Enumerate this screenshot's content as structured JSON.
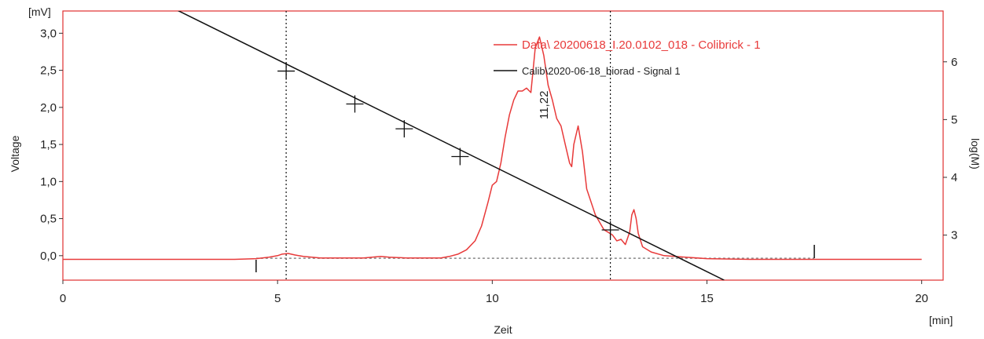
{
  "chart_data": {
    "type": "line",
    "xlabel": "Zeit",
    "xunit": "[min]",
    "ylabel": "Voltage",
    "yunit": "[mV]",
    "y2label": "log(M)",
    "xlim": [
      0,
      20.5
    ],
    "ylim": [
      -0.33,
      3.3
    ],
    "y2lim": [
      2.22,
      6.88
    ],
    "xticks": [
      0,
      5,
      10,
      15,
      20
    ],
    "xtick_labels": [
      "0",
      "5",
      "10",
      "15",
      "20"
    ],
    "yticks": [
      0,
      0.5,
      1,
      1.5,
      2,
      2.5,
      3
    ],
    "ytick_labels": [
      "0,0",
      "0,5",
      "1,0",
      "1,5",
      "2,0",
      "2,5",
      "3,0"
    ],
    "y2ticks": [
      3,
      4,
      5,
      6
    ],
    "y2tick_labels": [
      "3",
      "4",
      "5",
      "6"
    ],
    "grid": false,
    "legend_position": "top-right",
    "colors": {
      "data": "#e83a3a",
      "calib": "#111111",
      "frame": "#e03030",
      "axis_text": "#222222"
    },
    "series": [
      {
        "name": "Data\\ 20200618_I.20.0102_018 - Colibrick - 1",
        "axis": "left",
        "color": "#e83a3a",
        "x": [
          0.0,
          1.0,
          2.0,
          3.0,
          4.0,
          4.5,
          4.8,
          5.0,
          5.1,
          5.25,
          5.4,
          5.6,
          5.8,
          6.0,
          6.5,
          7.0,
          7.2,
          7.4,
          7.6,
          8.0,
          8.5,
          8.8,
          9.0,
          9.2,
          9.4,
          9.6,
          9.75,
          9.9,
          10.0,
          10.1,
          10.2,
          10.3,
          10.4,
          10.5,
          10.6,
          10.7,
          10.8,
          10.9,
          11.0,
          11.1,
          11.2,
          11.3,
          11.4,
          11.5,
          11.6,
          11.7,
          11.8,
          11.85,
          11.9,
          12.0,
          12.1,
          12.2,
          12.4,
          12.6,
          12.8,
          12.9,
          13.0,
          13.1,
          13.2,
          13.25,
          13.3,
          13.35,
          13.4,
          13.5,
          13.7,
          14.0,
          14.5,
          15.0,
          16.0,
          17.0,
          17.5,
          18.0,
          19.0,
          20.0
        ],
        "y": [
          -0.05,
          -0.05,
          -0.05,
          -0.05,
          -0.05,
          -0.04,
          -0.02,
          0.0,
          0.02,
          0.03,
          0.01,
          -0.01,
          -0.02,
          -0.03,
          -0.03,
          -0.03,
          -0.02,
          -0.01,
          -0.02,
          -0.03,
          -0.03,
          -0.03,
          -0.01,
          0.02,
          0.08,
          0.2,
          0.4,
          0.72,
          0.95,
          1.0,
          1.25,
          1.6,
          1.9,
          2.1,
          2.22,
          2.22,
          2.26,
          2.2,
          2.8,
          2.95,
          2.7,
          2.3,
          2.1,
          1.85,
          1.75,
          1.5,
          1.25,
          1.2,
          1.5,
          1.75,
          1.4,
          0.9,
          0.55,
          0.35,
          0.28,
          0.2,
          0.22,
          0.15,
          0.32,
          0.55,
          0.62,
          0.5,
          0.3,
          0.12,
          0.05,
          0.0,
          -0.02,
          -0.04,
          -0.05,
          -0.05,
          -0.05,
          -0.05,
          -0.05,
          -0.05
        ]
      },
      {
        "name": "Calib\\2020-06-18_biorad - Signal 1",
        "axis": "right",
        "color": "#111111",
        "x": [
          2.1,
          15.4
        ],
        "y": [
          7.1,
          2.22
        ]
      }
    ],
    "calibration_markers": [
      {
        "x": 5.2,
        "y": 5.84
      },
      {
        "x": 6.8,
        "y": 5.27
      },
      {
        "x": 7.95,
        "y": 4.84
      },
      {
        "x": 9.25,
        "y": 4.36
      },
      {
        "x": 12.75,
        "y": 3.09
      }
    ],
    "vertical_markers": [
      5.2,
      12.75
    ],
    "baseline": {
      "x": [
        4.5,
        17.5
      ],
      "y": -0.045
    },
    "integration_ticks": [
      4.5,
      17.5
    ],
    "peak_annotations": [
      {
        "x": 11.22,
        "y": 2.95,
        "label": "11,22"
      }
    ]
  }
}
